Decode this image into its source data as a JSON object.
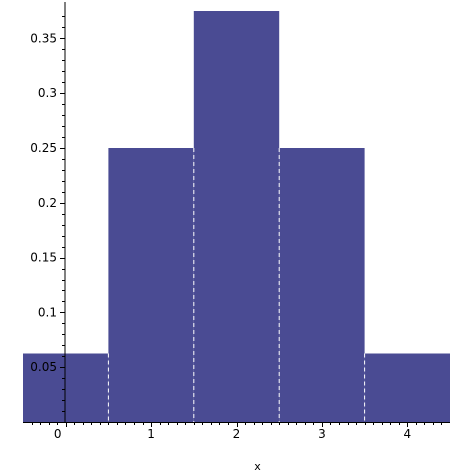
{
  "chart_data": {
    "type": "bar",
    "subtype": "histogram",
    "bins": [
      {
        "x0": -0.5,
        "x1": 0.5,
        "value": 0.0625
      },
      {
        "x0": 0.5,
        "x1": 1.5,
        "value": 0.25
      },
      {
        "x0": 1.5,
        "x1": 2.5,
        "value": 0.375
      },
      {
        "x0": 2.5,
        "x1": 3.5,
        "value": 0.25
      },
      {
        "x0": 3.5,
        "x1": 4.5,
        "value": 0.0625
      }
    ],
    "xlabel": "x",
    "ylabel": "",
    "title": "",
    "xlim": [
      -0.5,
      4.5
    ],
    "ylim": [
      0,
      0.375
    ],
    "x_ticks": [
      0,
      1,
      2,
      3,
      4
    ],
    "x_tick_labels": [
      "0",
      "1",
      "2",
      "3",
      "4"
    ],
    "y_ticks": [
      0.05,
      0.1,
      0.15,
      0.2,
      0.25,
      0.3,
      0.35
    ],
    "y_tick_labels": [
      "0.05",
      "0.1",
      "0.15",
      "0.2",
      "0.25",
      "0.3",
      "0.35"
    ],
    "grid": false,
    "legend": "none",
    "colors": {
      "bar_fill": "#4a4b93",
      "bin_edge": "#ffffff",
      "axis": "#000000"
    }
  }
}
